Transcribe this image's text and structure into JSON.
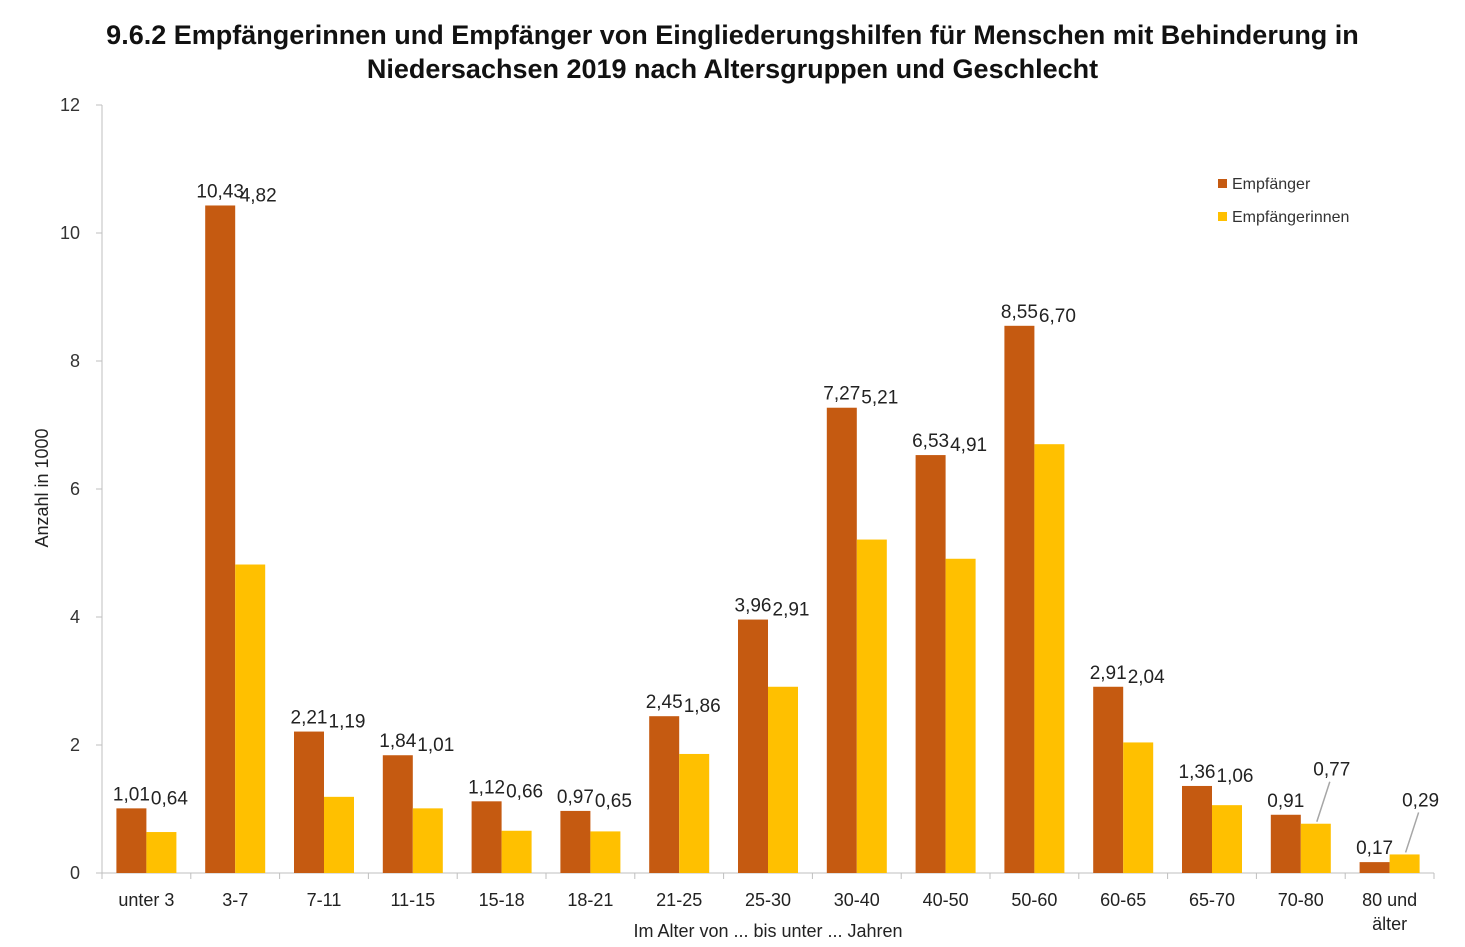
{
  "chart_data": {
    "type": "bar",
    "title_line1": "9.6.2 Empfängerinnen und Empfänger von Eingliederungshilfen für Menschen mit Behinderung in",
    "title_line2": "Niedersachsen 2019 nach Altersgruppen und Geschlecht",
    "xlabel": "Im Alter von ... bis unter ... Jahren",
    "ylabel": "Anzahl in 1000",
    "ylim": [
      0,
      12
    ],
    "yticks": [
      0,
      2,
      4,
      6,
      8,
      10,
      12
    ],
    "grid": false,
    "legend_position": "top-right",
    "categories": [
      [
        "unter 3"
      ],
      [
        "3-7"
      ],
      [
        "7-11"
      ],
      [
        "11-15"
      ],
      [
        "15-18"
      ],
      [
        "18-21"
      ],
      [
        "21-25"
      ],
      [
        "25-30"
      ],
      [
        "30-40"
      ],
      [
        "40-50"
      ],
      [
        "50-60"
      ],
      [
        "60-65"
      ],
      [
        "65-70"
      ],
      [
        "70-80"
      ],
      [
        "80 und",
        "älter"
      ]
    ],
    "series": [
      {
        "name": "Empfänger",
        "color": "#C55A11",
        "values": [
          1.01,
          10.43,
          2.21,
          1.84,
          1.12,
          0.97,
          2.45,
          3.96,
          7.27,
          6.53,
          8.55,
          2.91,
          1.36,
          0.91,
          0.17
        ],
        "labels": [
          "1,01",
          "10,43",
          "2,21",
          "1,84",
          "1,12",
          "0,97",
          "2,45",
          "3,96",
          "7,27",
          "6,53",
          "8,55",
          "2,91",
          "1,36",
          "0,91",
          "0,17"
        ]
      },
      {
        "name": "Empfängerinnen",
        "color": "#FFC000",
        "values": [
          0.64,
          4.82,
          1.19,
          1.01,
          0.66,
          0.65,
          1.86,
          2.91,
          5.21,
          4.91,
          6.7,
          2.04,
          1.06,
          0.77,
          0.29
        ],
        "labels": [
          "0,64",
          "4,82",
          "1,19",
          "1,01",
          "0,66",
          "0,65",
          "1,86",
          "2,91",
          "5,21",
          "4,91",
          "6,70",
          "2,04",
          "1,06",
          "0,77",
          "0,29"
        ]
      }
    ]
  }
}
